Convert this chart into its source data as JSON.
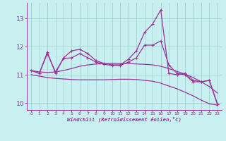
{
  "xlabel": "Windchill (Refroidissement éolien,°C)",
  "background_color": "#c8f0f0",
  "line_color": "#993399",
  "grid_color": "#99cccc",
  "xlim": [
    -0.5,
    23.5
  ],
  "ylim": [
    9.75,
    13.55
  ],
  "xticks": [
    0,
    1,
    2,
    3,
    4,
    5,
    6,
    7,
    8,
    9,
    10,
    11,
    12,
    13,
    14,
    15,
    16,
    17,
    18,
    19,
    20,
    21,
    22,
    23
  ],
  "yticks": [
    10,
    11,
    12,
    13
  ],
  "line1_x": [
    0,
    1,
    2,
    3,
    4,
    5,
    6,
    7,
    8,
    9,
    10,
    11,
    12,
    13,
    14,
    15,
    16,
    17,
    18,
    19,
    20,
    21,
    22,
    23
  ],
  "line1_y": [
    11.15,
    11.05,
    11.8,
    11.05,
    11.6,
    11.85,
    11.9,
    11.75,
    11.5,
    11.4,
    11.35,
    11.35,
    11.55,
    11.85,
    12.5,
    12.8,
    13.3,
    11.05,
    11.0,
    11.05,
    10.8,
    10.75,
    10.8,
    9.95
  ],
  "line2_x": [
    0,
    1,
    2,
    3,
    4,
    5,
    6,
    7,
    8,
    9,
    10,
    11,
    12,
    13,
    14,
    15,
    16,
    17,
    18,
    19,
    20,
    21,
    22,
    23
  ],
  "line2_y": [
    11.15,
    11.05,
    11.75,
    11.1,
    11.58,
    11.6,
    11.75,
    11.6,
    11.45,
    11.37,
    11.33,
    11.33,
    11.45,
    11.6,
    12.05,
    12.05,
    12.2,
    11.35,
    11.05,
    11.0,
    10.75,
    10.75,
    10.8,
    9.95
  ],
  "line3_x": [
    0,
    1,
    2,
    3,
    4,
    5,
    6,
    7,
    8,
    9,
    10,
    11,
    12,
    13,
    14,
    15,
    16,
    17,
    18,
    19,
    20,
    21,
    22,
    23
  ],
  "line3_y": [
    11.15,
    11.1,
    11.08,
    11.1,
    11.15,
    11.22,
    11.3,
    11.35,
    11.38,
    11.39,
    11.4,
    11.4,
    11.4,
    11.38,
    11.37,
    11.35,
    11.3,
    11.22,
    11.12,
    11.02,
    10.9,
    10.75,
    10.58,
    10.35
  ],
  "line4_x": [
    0,
    1,
    2,
    3,
    4,
    5,
    6,
    7,
    8,
    9,
    10,
    11,
    12,
    13,
    14,
    15,
    16,
    17,
    18,
    19,
    20,
    21,
    22,
    23
  ],
  "line4_y": [
    11.0,
    10.95,
    10.9,
    10.87,
    10.85,
    10.83,
    10.82,
    10.82,
    10.82,
    10.82,
    10.83,
    10.84,
    10.84,
    10.83,
    10.8,
    10.77,
    10.7,
    10.6,
    10.5,
    10.38,
    10.25,
    10.1,
    9.97,
    9.92
  ]
}
